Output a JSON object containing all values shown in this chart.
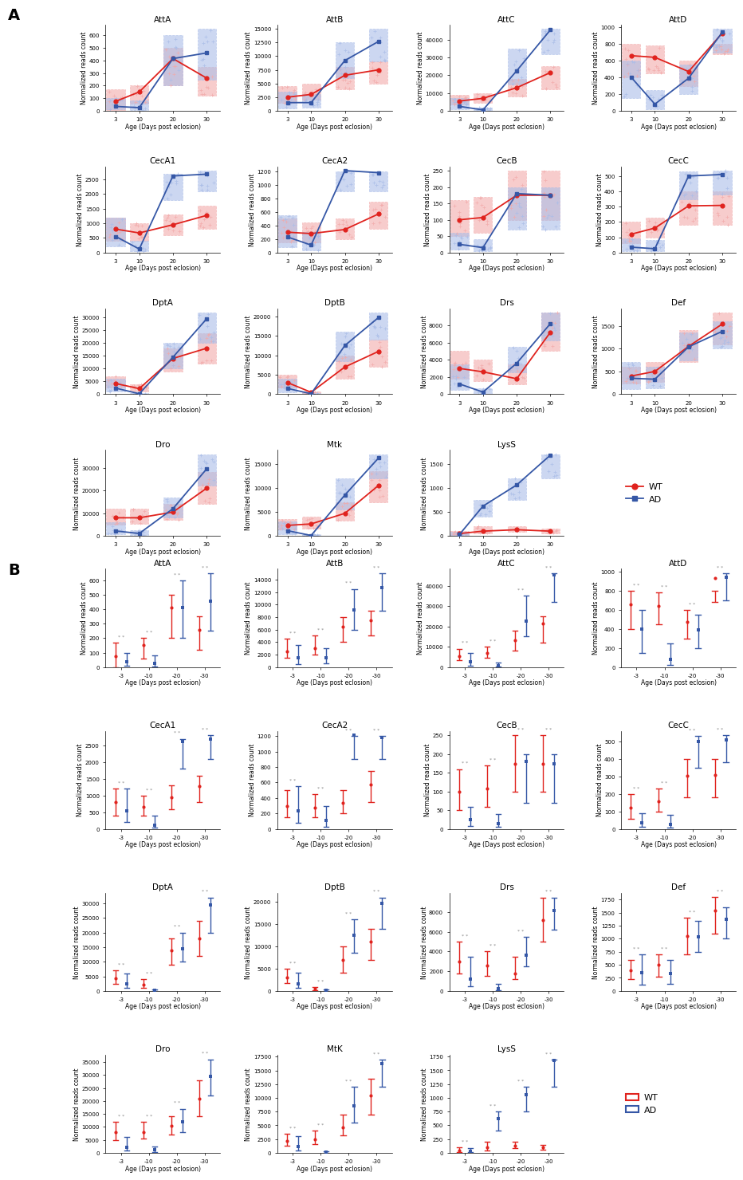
{
  "genes": [
    "AttA",
    "AttB",
    "AttC",
    "AttD",
    "CecA1",
    "CecA2",
    "CecB",
    "CecC",
    "DptA",
    "DptB",
    "Drs",
    "Def",
    "Dro",
    "Mtk",
    "LysS"
  ],
  "timepoints": [
    3,
    10,
    20,
    30
  ],
  "wt_means": {
    "AttA": [
      75,
      150,
      415,
      260
    ],
    "AttB": [
      2500,
      3000,
      6500,
      7500
    ],
    "AttC": [
      5500,
      7000,
      13000,
      21500
    ],
    "AttD": [
      660,
      640,
      470,
      930
    ],
    "CecA1": [
      800,
      670,
      950,
      1270
    ],
    "CecA2": [
      300,
      280,
      340,
      570
    ],
    "CecB": [
      100,
      107,
      175,
      175
    ],
    "CecC": [
      120,
      160,
      305,
      308
    ],
    "DptA": [
      4200,
      2200,
      14000,
      18000
    ],
    "DptB": [
      3000,
      500,
      7000,
      11000
    ],
    "Drs": [
      3000,
      2600,
      1800,
      7200
    ],
    "Def": [
      400,
      500,
      1050,
      1540
    ],
    "Dro": [
      8000,
      8000,
      10500,
      21000
    ],
    "Mtk": [
      2200,
      2500,
      4700,
      10500
    ],
    "LysS": [
      50,
      100,
      130,
      100
    ]
  },
  "ad_means": {
    "AttA": [
      35,
      25,
      415,
      460
    ],
    "AttB": [
      1500,
      1500,
      9200,
      12700
    ],
    "AttC": [
      2500,
      500,
      22500,
      45500
    ],
    "AttD": [
      400,
      80,
      390,
      940
    ],
    "CecA1": [
      550,
      120,
      2620,
      2680
    ],
    "CecA2": [
      230,
      110,
      1210,
      1180
    ],
    "CecB": [
      25,
      15,
      180,
      175
    ],
    "CecC": [
      35,
      25,
      500,
      510
    ],
    "DptA": [
      2400,
      200,
      14500,
      29500
    ],
    "DptB": [
      1500,
      120,
      12500,
      19700
    ],
    "Drs": [
      1200,
      250,
      3600,
      8200
    ],
    "Def": [
      350,
      330,
      1040,
      1380
    ],
    "Dro": [
      2200,
      1100,
      12000,
      29500
    ],
    "Mtk": [
      1100,
      100,
      8500,
      16200
    ],
    "LysS": [
      30,
      620,
      1060,
      1680
    ]
  },
  "wt_q1": {
    "AttA": [
      0,
      60,
      200,
      120
    ],
    "AttB": [
      1500,
      2000,
      4000,
      5000
    ],
    "AttC": [
      3500,
      4500,
      8000,
      12000
    ],
    "AttD": [
      400,
      450,
      300,
      680
    ],
    "CecA1": [
      400,
      400,
      600,
      800
    ],
    "CecA2": [
      150,
      150,
      200,
      350
    ],
    "CecB": [
      50,
      60,
      100,
      100
    ],
    "CecC": [
      60,
      100,
      180,
      180
    ],
    "DptA": [
      2500,
      1000,
      9000,
      12000
    ],
    "DptB": [
      1800,
      200,
      4000,
      7000
    ],
    "Drs": [
      1800,
      1500,
      1200,
      5000
    ],
    "Def": [
      230,
      270,
      700,
      1100
    ],
    "Dro": [
      5000,
      5500,
      7000,
      14000
    ],
    "Mtk": [
      1300,
      1600,
      3200,
      7000
    ],
    "LysS": [
      20,
      50,
      80,
      60
    ]
  },
  "wt_q3": {
    "AttA": [
      170,
      200,
      500,
      350
    ],
    "AttB": [
      4500,
      5000,
      8000,
      9000
    ],
    "AttC": [
      9000,
      10000,
      18000,
      25000
    ],
    "AttD": [
      800,
      780,
      600,
      800
    ],
    "CecA1": [
      1200,
      1000,
      1300,
      1600
    ],
    "CecA2": [
      500,
      450,
      500,
      750
    ],
    "CecB": [
      160,
      170,
      250,
      250
    ],
    "CecC": [
      200,
      230,
      400,
      400
    ],
    "DptA": [
      7000,
      4000,
      18000,
      24000
    ],
    "DptB": [
      5000,
      800,
      10000,
      14000
    ],
    "Drs": [
      5000,
      4000,
      3500,
      9500
    ],
    "Def": [
      600,
      700,
      1400,
      1800
    ],
    "Dro": [
      12000,
      12000,
      14000,
      28000
    ],
    "Mtk": [
      3500,
      4000,
      7000,
      13500
    ],
    "LysS": [
      100,
      200,
      200,
      150
    ]
  },
  "ad_q1": {
    "AttA": [
      10,
      5,
      200,
      250
    ],
    "AttB": [
      500,
      600,
      6000,
      9000
    ],
    "AttC": [
      800,
      100,
      15000,
      32000
    ],
    "AttD": [
      150,
      20,
      200,
      700
    ],
    "CecA1": [
      200,
      40,
      1800,
      2100
    ],
    "CecA2": [
      80,
      30,
      900,
      900
    ],
    "CecB": [
      8,
      5,
      70,
      70
    ],
    "CecC": [
      10,
      8,
      350,
      380
    ],
    "DptA": [
      1000,
      50,
      10000,
      20000
    ],
    "DptB": [
      600,
      30,
      8500,
      14000
    ],
    "Drs": [
      500,
      80,
      2500,
      6200
    ],
    "Def": [
      120,
      130,
      750,
      1000
    ],
    "Dro": [
      800,
      350,
      8000,
      22000
    ],
    "Mtk": [
      400,
      30,
      5500,
      12000
    ],
    "LysS": [
      10,
      400,
      750,
      1200
    ]
  },
  "ad_q3": {
    "AttA": [
      100,
      80,
      600,
      650
    ],
    "AttB": [
      3500,
      3000,
      12500,
      15000
    ],
    "AttC": [
      7000,
      2000,
      35000,
      46000
    ],
    "AttD": [
      600,
      250,
      550,
      980
    ],
    "CecA1": [
      1200,
      400,
      2700,
      2800
    ],
    "CecA2": [
      550,
      300,
      1200,
      1200
    ],
    "CecB": [
      60,
      40,
      200,
      200
    ],
    "CecC": [
      90,
      80,
      530,
      535
    ],
    "DptA": [
      6000,
      500,
      20000,
      32000
    ],
    "DptB": [
      4000,
      400,
      16000,
      21000
    ],
    "Drs": [
      3500,
      700,
      5500,
      9500
    ],
    "Def": [
      700,
      600,
      1350,
      1600
    ],
    "Dro": [
      6000,
      2500,
      17000,
      36000
    ],
    "Mtk": [
      3000,
      350,
      12000,
      17000
    ],
    "LysS": [
      80,
      750,
      1200,
      1700
    ]
  },
  "box_title_override": {
    "Mtk": "MtK"
  },
  "wt_color": "#e0231e",
  "ad_color": "#3557a6",
  "wt_color_light": "#f2aaaa",
  "ad_color_light": "#aabde8",
  "background": "#ffffff"
}
